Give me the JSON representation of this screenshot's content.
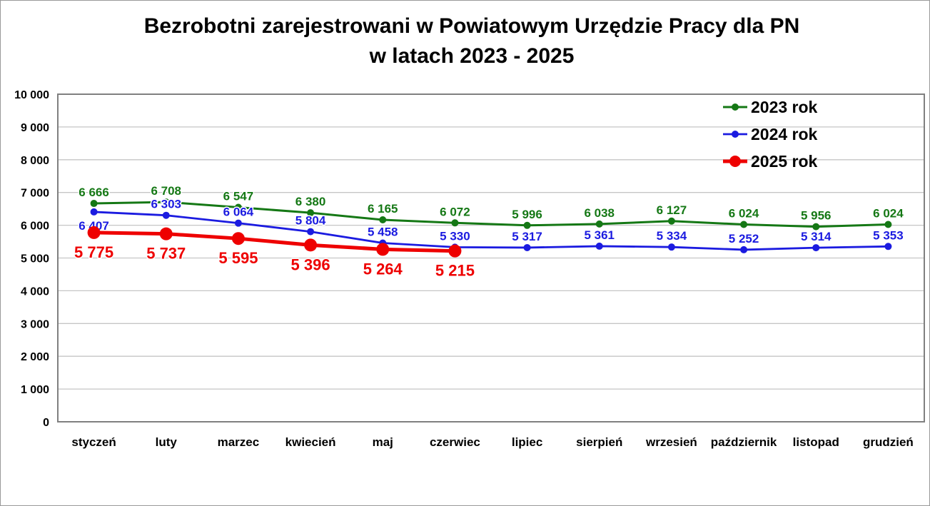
{
  "chart_data": {
    "type": "line",
    "title_lines": [
      "Bezrobotni zarejestrowani w Powiatowym Urzędzie Pracy dla PN",
      "w latach 2023 - 2025"
    ],
    "categories": [
      "styczeń",
      "luty",
      "marzec",
      "kwiecień",
      "maj",
      "czerwiec",
      "lipiec",
      "sierpień",
      "wrzesień",
      "październik",
      "listopad",
      "grudzień"
    ],
    "series": [
      {
        "name": "2023 rok",
        "color": "#157815",
        "values": [
          6666,
          6708,
          6547,
          6380,
          6165,
          6072,
          5996,
          6038,
          6127,
          6024,
          5956,
          6024
        ],
        "label_position": "above",
        "label_font_size": 17,
        "line_width": 3,
        "marker_radius": 5
      },
      {
        "name": "2024 rok",
        "color": "#1b1be0",
        "values": [
          6407,
          6303,
          6064,
          5804,
          5458,
          5330,
          5317,
          5361,
          5334,
          5252,
          5314,
          5353
        ],
        "label_position": "above",
        "label_position_overrides": {
          "0": "below"
        },
        "label_font_size": 17,
        "line_width": 2.8,
        "marker_radius": 5
      },
      {
        "name": "2025 rok",
        "color": "#ee0000",
        "values": [
          5775,
          5737,
          5595,
          5396,
          5264,
          5215,
          null,
          null,
          null,
          null,
          null,
          null
        ],
        "label_position": "below",
        "label_font_size": 22,
        "line_width": 5,
        "marker_radius": 9
      }
    ],
    "ylim": [
      0,
      10000
    ],
    "ytick_step": 1000,
    "ytick_labels": [
      "0",
      "1 000",
      "2 000",
      "3 000",
      "4 000",
      "5 000",
      "6 000",
      "7 000",
      "8 000",
      "9 000",
      "10 000"
    ],
    "grid": "horizontal",
    "legend_position": "top-right",
    "axis_color": "#808080",
    "grid_color": "#c6c6c6",
    "text_color": "#000000"
  }
}
